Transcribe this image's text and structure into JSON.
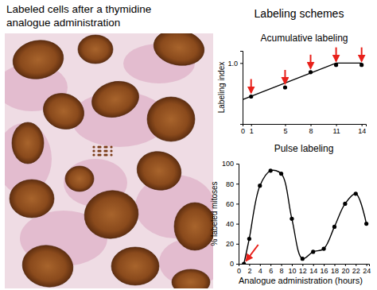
{
  "figure": {
    "image_title": [
      "Labeled cells after a thymidine",
      "analogue administration"
    ],
    "schemes_title": "Labeling schemes"
  },
  "chart_data": [
    {
      "type": "line",
      "title": "Acumulative labeling",
      "y_label": "Labeling index",
      "xlim": [
        0,
        14.5
      ],
      "xticks": [
        0,
        1,
        5,
        8,
        11,
        14
      ],
      "ylim": [
        0,
        1.2
      ],
      "yticks": [
        {
          "value": 1,
          "label": "1.0"
        }
      ],
      "grid": false,
      "series": [
        {
          "type": "line",
          "x": [
            0,
            11,
            14
          ],
          "values": [
            0.4,
            1,
            1
          ],
          "color": "#000000",
          "line_style": "solid"
        },
        {
          "type": "scatter",
          "x": [
            1,
            5,
            8,
            11,
            14
          ],
          "values": [
            0.45,
            0.6,
            0.85,
            0.97,
            0.97
          ],
          "color": "#000000",
          "marker": "circle"
        }
      ]
    },
    {
      "type": "line",
      "title": "Pulse labeling",
      "x_label": "Analogue administration (hours)",
      "y_label": "% labeled mitoses",
      "xlim": [
        0,
        24.5
      ],
      "xticks": [
        0,
        2,
        4,
        6,
        8,
        10,
        12,
        14,
        16,
        18,
        20,
        22,
        24
      ],
      "ylim": [
        0,
        100
      ],
      "yticks": [
        0,
        20,
        40,
        60,
        80,
        100
      ],
      "grid": false,
      "series": [
        {
          "type": "line",
          "x": [
            1,
            2,
            4,
            6,
            8,
            10,
            12,
            14,
            16,
            18,
            20,
            22,
            24
          ],
          "values": [
            0,
            25,
            78,
            93,
            90,
            45,
            5,
            12,
            15,
            37,
            60,
            70,
            40
          ],
          "color": "#000000",
          "marker": "circle",
          "line_style": "smooth"
        }
      ]
    }
  ]
}
